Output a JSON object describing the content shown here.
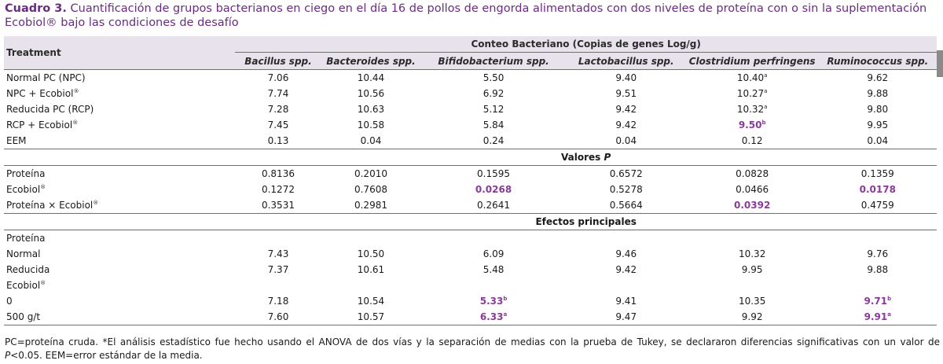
{
  "caption": {
    "label": "Cuadro 3.",
    "text": "Cuantificación de grupos bacterianos en ciego en el día 16 de pollos de engorda alimentados con dos niveles de proteína con o sin la suplementación Ecobiol® bajo las condiciones de desafío"
  },
  "table": {
    "treatment_header": "Treatment",
    "group_header": "Conteo Bacteriano (Copias de genes Log/g)",
    "columns": [
      "Bacillus spp.",
      "Bacteroides spp.",
      "Bifidobacterium spp.",
      "Lactobacillus spp.",
      "Clostridium perfringens",
      "Ruminococcus spp."
    ],
    "rows": [
      {
        "label": "Normal PC (NPC)",
        "values": [
          {
            "v": "7.06"
          },
          {
            "v": "10.44"
          },
          {
            "v": "5.50"
          },
          {
            "v": "9.40"
          },
          {
            "v": "10.40",
            "sup": "a"
          },
          {
            "v": "9.62"
          }
        ]
      },
      {
        "label": "NPC + Ecobiol",
        "label_sup": "®",
        "values": [
          {
            "v": "7.74"
          },
          {
            "v": "10.56"
          },
          {
            "v": "6.92"
          },
          {
            "v": "9.51"
          },
          {
            "v": "10.27",
            "sup": "a"
          },
          {
            "v": "9.88"
          }
        ]
      },
      {
        "label": "Reducida PC (RCP)",
        "values": [
          {
            "v": "7.28"
          },
          {
            "v": "10.63"
          },
          {
            "v": "5.12"
          },
          {
            "v": "9.42"
          },
          {
            "v": "10.32",
            "sup": "a"
          },
          {
            "v": "9.80"
          }
        ]
      },
      {
        "label": "RCP + Ecobiol",
        "label_sup": "®",
        "values": [
          {
            "v": "7.45"
          },
          {
            "v": "10.58"
          },
          {
            "v": "5.84"
          },
          {
            "v": "9.42"
          },
          {
            "v": "9.50",
            "sup": "b",
            "hl": true
          },
          {
            "v": "9.95"
          }
        ]
      },
      {
        "label": "EEM",
        "rule": true,
        "values": [
          {
            "v": "0.13"
          },
          {
            "v": "0.04"
          },
          {
            "v": "0.24"
          },
          {
            "v": "0.04"
          },
          {
            "v": "0.12"
          },
          {
            "v": "0.04"
          }
        ]
      },
      {
        "section": "Valores",
        "section_italic": "P",
        "rule": true
      },
      {
        "label": "Proteína",
        "values": [
          {
            "v": "0.8136"
          },
          {
            "v": "0.2010"
          },
          {
            "v": "0.1595"
          },
          {
            "v": "0.6572"
          },
          {
            "v": "0.0828"
          },
          {
            "v": "0.1359"
          }
        ]
      },
      {
        "label": "Ecobiol",
        "label_sup": "®",
        "values": [
          {
            "v": "0.1272"
          },
          {
            "v": "0.7608"
          },
          {
            "v": "0.0268",
            "hl": true
          },
          {
            "v": "0.5278"
          },
          {
            "v": "0.0466"
          },
          {
            "v": "0.0178",
            "hl": true
          }
        ]
      },
      {
        "label": "Proteína × Ecobiol",
        "label_sup": "®",
        "rule": true,
        "values": [
          {
            "v": "0.3531"
          },
          {
            "v": "0.2981"
          },
          {
            "v": "0.2641"
          },
          {
            "v": "0.5664"
          },
          {
            "v": "0.0392",
            "hl": true
          },
          {
            "v": "0.4759"
          }
        ]
      },
      {
        "section": "Efectos principales",
        "rule": true
      },
      {
        "label": "Proteína",
        "values": []
      },
      {
        "label": "Normal",
        "values": [
          {
            "v": "7.43"
          },
          {
            "v": "10.50"
          },
          {
            "v": "6.09"
          },
          {
            "v": "9.46"
          },
          {
            "v": "10.32"
          },
          {
            "v": "9.76"
          }
        ]
      },
      {
        "label": "Reducida",
        "values": [
          {
            "v": "7.37"
          },
          {
            "v": "10.61"
          },
          {
            "v": "5.48"
          },
          {
            "v": "9.42"
          },
          {
            "v": "9.95"
          },
          {
            "v": "9.88"
          }
        ]
      },
      {
        "label": "Ecobiol",
        "label_sup": "®",
        "values": []
      },
      {
        "label": "0",
        "values": [
          {
            "v": "7.18"
          },
          {
            "v": "10.54"
          },
          {
            "v": "5.33",
            "sup": "b",
            "hl": true
          },
          {
            "v": "9.41"
          },
          {
            "v": "10.35"
          },
          {
            "v": "9.71",
            "sup": "b",
            "hl": true
          }
        ]
      },
      {
        "label": "500 g/t",
        "rule": true,
        "values": [
          {
            "v": "7.60"
          },
          {
            "v": "10.57"
          },
          {
            "v": "6.33",
            "sup": "a",
            "hl": true
          },
          {
            "v": "9.47"
          },
          {
            "v": "9.92"
          },
          {
            "v": "9.91",
            "sup": "a",
            "hl": true
          }
        ]
      }
    ]
  },
  "footnote": {
    "line1": "PC=proteína cruda. *El análisis estadístico fue hecho usando el ANOVA de dos vías y la separación de medias con la prueba de Tukey, se declararon diferencias significativas con un valor de",
    "p_italic": "P",
    "line2": "<0.05. EEM=error estándar de la media."
  },
  "colors": {
    "accent": "#6a2c82",
    "highlight": "#8b3a9b",
    "header_bg": "#e7e2ec"
  }
}
